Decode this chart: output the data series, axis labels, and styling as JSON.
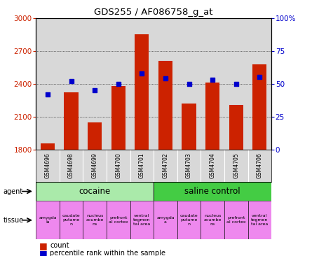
{
  "title": "GDS255 / AF086758_g_at",
  "samples": [
    "GSM4696",
    "GSM4698",
    "GSM4699",
    "GSM4700",
    "GSM4701",
    "GSM4702",
    "GSM4703",
    "GSM4704",
    "GSM4705",
    "GSM4706"
  ],
  "counts": [
    1860,
    2320,
    2050,
    2380,
    2850,
    2610,
    2220,
    2410,
    2210,
    2580
  ],
  "percentiles": [
    42,
    52,
    45,
    50,
    58,
    54,
    50,
    53,
    50,
    55
  ],
  "ylim_left": [
    1800,
    3000
  ],
  "ylim_right": [
    0,
    100
  ],
  "yticks_left": [
    1800,
    2100,
    2400,
    2700,
    3000
  ],
  "yticks_right": [
    0,
    25,
    50,
    75,
    100
  ],
  "ytick_labels_right": [
    "0",
    "25",
    "50",
    "75",
    "100%"
  ],
  "bar_color": "#cc2200",
  "scatter_color": "#0000cc",
  "axis_bg": "#d8d8d8",
  "green_cocaine": "#aaeaaa",
  "green_saline": "#44cc44",
  "tissue_color": "#ee88ee",
  "white": "#ffffff"
}
